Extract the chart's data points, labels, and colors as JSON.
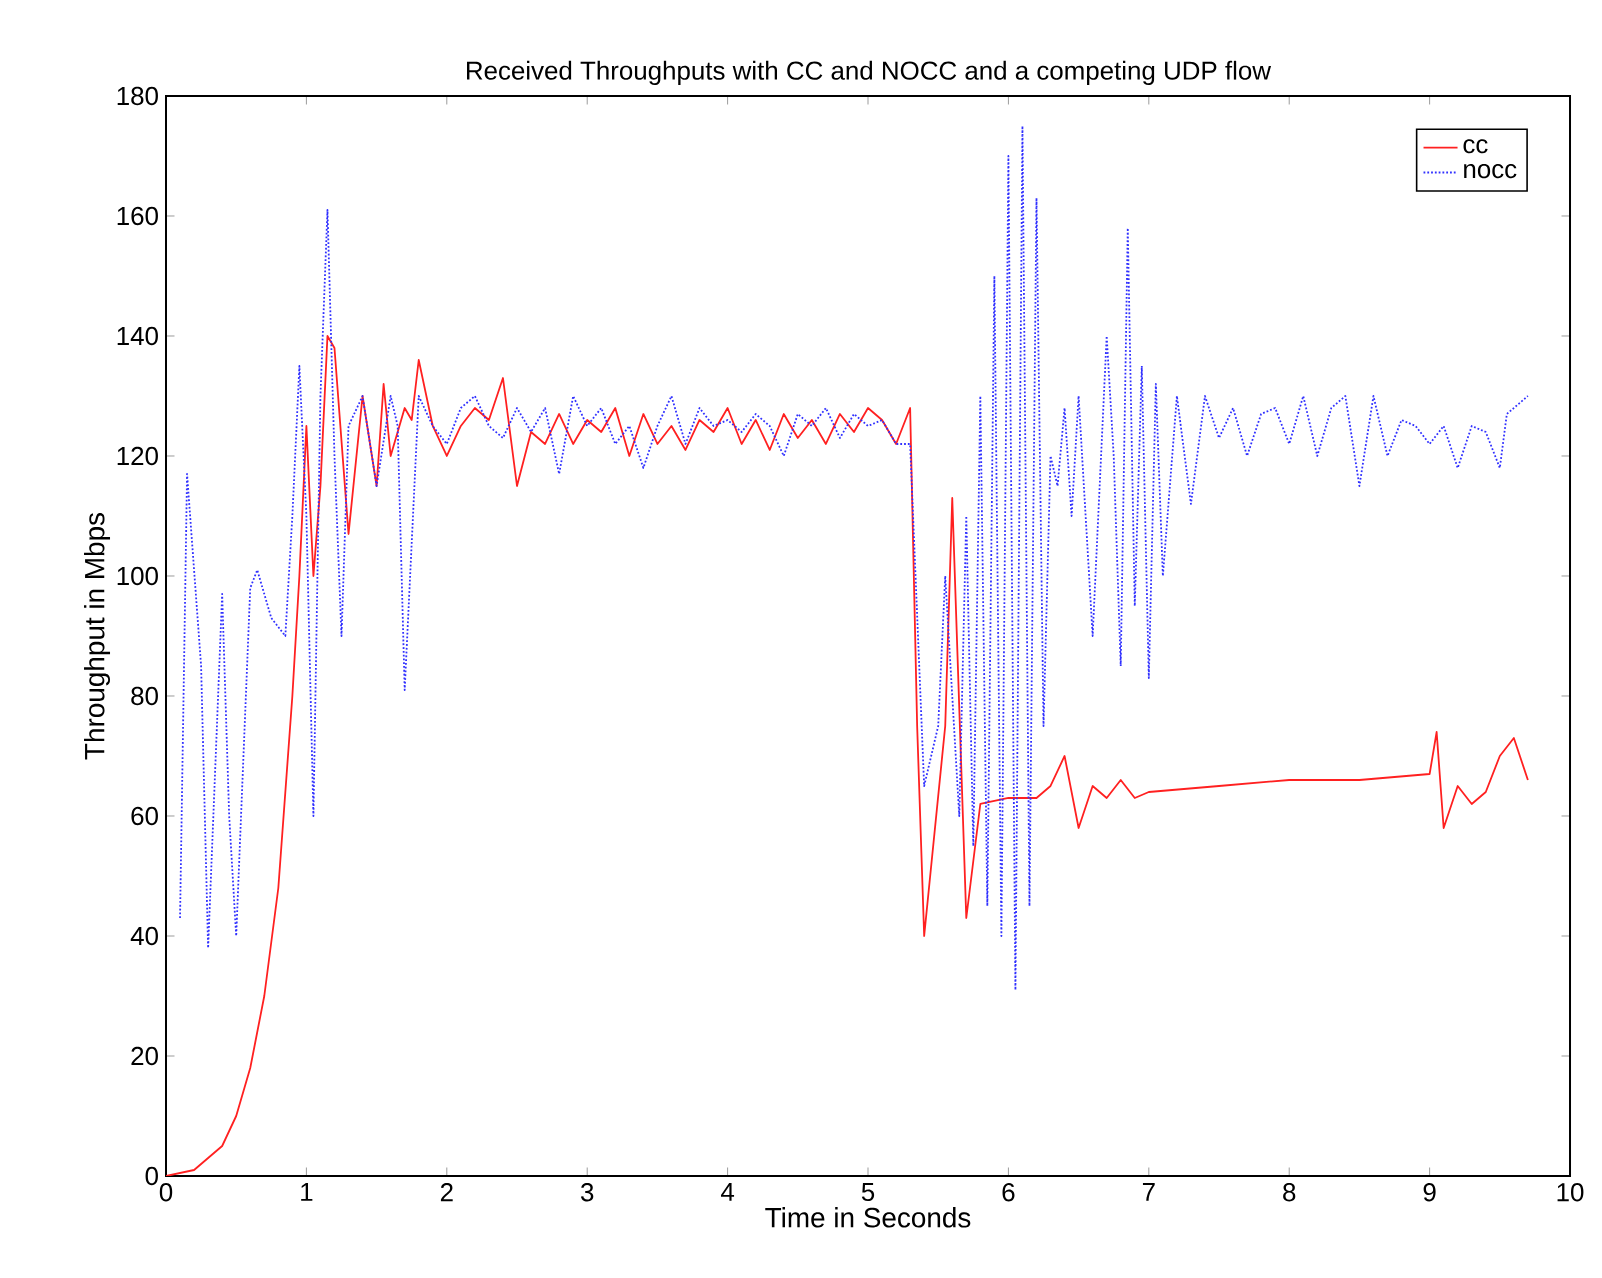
{
  "chart_data": {
    "type": "line",
    "title": "Received Throughputs with CC and NOCC and a competing UDP flow",
    "xlabel": "Time in Seconds",
    "ylabel": "Throughput in Mbps",
    "xlim": [
      0,
      10
    ],
    "ylim": [
      0,
      180
    ],
    "xticks": [
      0,
      1,
      2,
      3,
      4,
      5,
      6,
      7,
      8,
      9,
      10
    ],
    "yticks": [
      0,
      20,
      40,
      60,
      80,
      100,
      120,
      140,
      160,
      180
    ],
    "grid": false,
    "legend": "top right",
    "series": [
      {
        "name": "cc",
        "color": "#ff2020",
        "line_style": "solid",
        "x": [
          0,
          0.2,
          0.4,
          0.5,
          0.6,
          0.7,
          0.8,
          0.9,
          0.95,
          1.0,
          1.05,
          1.1,
          1.15,
          1.2,
          1.3,
          1.4,
          1.5,
          1.55,
          1.6,
          1.7,
          1.75,
          1.8,
          1.9,
          2.0,
          2.1,
          2.2,
          2.3,
          2.4,
          2.5,
          2.6,
          2.7,
          2.8,
          2.9,
          3.0,
          3.1,
          3.2,
          3.3,
          3.4,
          3.5,
          3.6,
          3.7,
          3.8,
          3.9,
          4.0,
          4.1,
          4.2,
          4.3,
          4.4,
          4.5,
          4.6,
          4.7,
          4.8,
          4.9,
          5.0,
          5.1,
          5.2,
          5.3,
          5.35,
          5.4,
          5.55,
          5.6,
          5.7,
          5.8,
          6.0,
          6.2,
          6.3,
          6.4,
          6.5,
          6.6,
          6.7,
          6.8,
          6.9,
          7.0,
          7.5,
          8.0,
          8.5,
          9.0,
          9.05,
          9.1,
          9.2,
          9.3,
          9.4,
          9.5,
          9.6,
          9.7
        ],
        "values": [
          0,
          1,
          5,
          10,
          18,
          30,
          48,
          80,
          100,
          125,
          100,
          115,
          140,
          138,
          107,
          130,
          115,
          132,
          120,
          128,
          126,
          136,
          125,
          120,
          125,
          128,
          126,
          133,
          115,
          124,
          122,
          127,
          122,
          126,
          124,
          128,
          120,
          127,
          122,
          125,
          121,
          126,
          124,
          128,
          122,
          126,
          121,
          127,
          123,
          126,
          122,
          127,
          124,
          128,
          126,
          122,
          128,
          75,
          40,
          75,
          113,
          43,
          62,
          63,
          63,
          65,
          70,
          58,
          65,
          63,
          66,
          63,
          64,
          65,
          66,
          66,
          67,
          74,
          58,
          65,
          62,
          64,
          70,
          73,
          66
        ]
      },
      {
        "name": "nocc",
        "color": "#3030ff",
        "line_style": "dotted",
        "x": [
          0.1,
          0.15,
          0.25,
          0.3,
          0.4,
          0.45,
          0.5,
          0.6,
          0.65,
          0.75,
          0.85,
          0.9,
          0.95,
          1.0,
          1.05,
          1.1,
          1.15,
          1.2,
          1.25,
          1.3,
          1.4,
          1.5,
          1.6,
          1.65,
          1.7,
          1.8,
          1.9,
          2.0,
          2.1,
          2.2,
          2.3,
          2.4,
          2.5,
          2.6,
          2.7,
          2.8,
          2.9,
          3.0,
          3.1,
          3.2,
          3.3,
          3.4,
          3.5,
          3.6,
          3.7,
          3.8,
          3.9,
          4.0,
          4.1,
          4.2,
          4.3,
          4.4,
          4.5,
          4.6,
          4.7,
          4.8,
          4.9,
          5.0,
          5.1,
          5.2,
          5.3,
          5.4,
          5.5,
          5.55,
          5.65,
          5.7,
          5.75,
          5.8,
          5.85,
          5.9,
          5.95,
          6.0,
          6.05,
          6.1,
          6.15,
          6.2,
          6.25,
          6.3,
          6.35,
          6.4,
          6.45,
          6.5,
          6.6,
          6.7,
          6.75,
          6.8,
          6.85,
          6.9,
          6.95,
          7.0,
          7.05,
          7.1,
          7.2,
          7.3,
          7.4,
          7.5,
          7.6,
          7.7,
          7.8,
          7.9,
          8.0,
          8.1,
          8.2,
          8.3,
          8.4,
          8.5,
          8.6,
          8.7,
          8.8,
          8.9,
          9.0,
          9.1,
          9.2,
          9.3,
          9.4,
          9.5,
          9.55,
          9.7
        ],
        "values": [
          43,
          117,
          85,
          38,
          97,
          60,
          40,
          98,
          101,
          93,
          90,
          110,
          135,
          110,
          60,
          130,
          161,
          120,
          90,
          125,
          130,
          115,
          130,
          125,
          81,
          130,
          125,
          122,
          128,
          130,
          125,
          123,
          128,
          124,
          128,
          117,
          130,
          125,
          128,
          122,
          125,
          118,
          125,
          130,
          122,
          128,
          125,
          126,
          124,
          127,
          125,
          120,
          127,
          125,
          128,
          123,
          127,
          125,
          126,
          122,
          122,
          65,
          75,
          100,
          60,
          110,
          55,
          130,
          45,
          150,
          40,
          170,
          31,
          175,
          45,
          163,
          75,
          120,
          115,
          128,
          110,
          130,
          90,
          140,
          120,
          85,
          158,
          95,
          135,
          83,
          132,
          100,
          130,
          112,
          130,
          123,
          128,
          120,
          127,
          128,
          122,
          130,
          120,
          128,
          130,
          115,
          130,
          120,
          126,
          125,
          122,
          125,
          118,
          125,
          124,
          118,
          127,
          130
        ]
      }
    ]
  }
}
